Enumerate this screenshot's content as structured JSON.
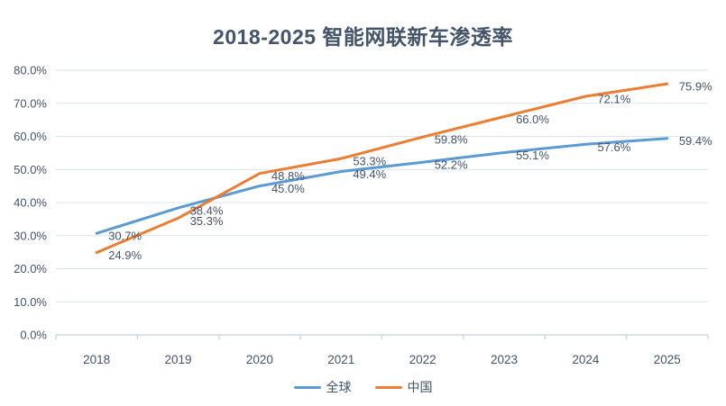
{
  "title": "2018-2025 智能网联新车渗透率",
  "chart_data": {
    "type": "line",
    "title": "2018-2025 智能网联新车渗透率",
    "categories": [
      "2018",
      "2019",
      "2020",
      "2021",
      "2022",
      "2023",
      "2024",
      "2025"
    ],
    "series": [
      {
        "name": "全球",
        "color": "#5B9BD5",
        "values": [
          30.7,
          38.4,
          45.0,
          49.4,
          52.2,
          55.1,
          57.6,
          59.4
        ]
      },
      {
        "name": "中国",
        "color": "#ED7D31",
        "values": [
          24.9,
          35.3,
          48.8,
          53.3,
          59.8,
          66.0,
          72.1,
          75.9
        ]
      }
    ],
    "xlabel": "",
    "ylabel": "",
    "ylim": [
      0,
      80
    ],
    "ytick_step": 10,
    "ytick_format": "0.0%",
    "grid": "horizontal",
    "data_labels": "right-of-point",
    "label_suffix": "%",
    "legend_position": "bottom-center"
  },
  "colors": {
    "title_text": "#44546A",
    "axis_text": "#44546A",
    "data_label_text": "#44546A",
    "gridline": "#DCE3ED",
    "axis_line": "#C8D1DD",
    "background": "#FFFFFF"
  }
}
